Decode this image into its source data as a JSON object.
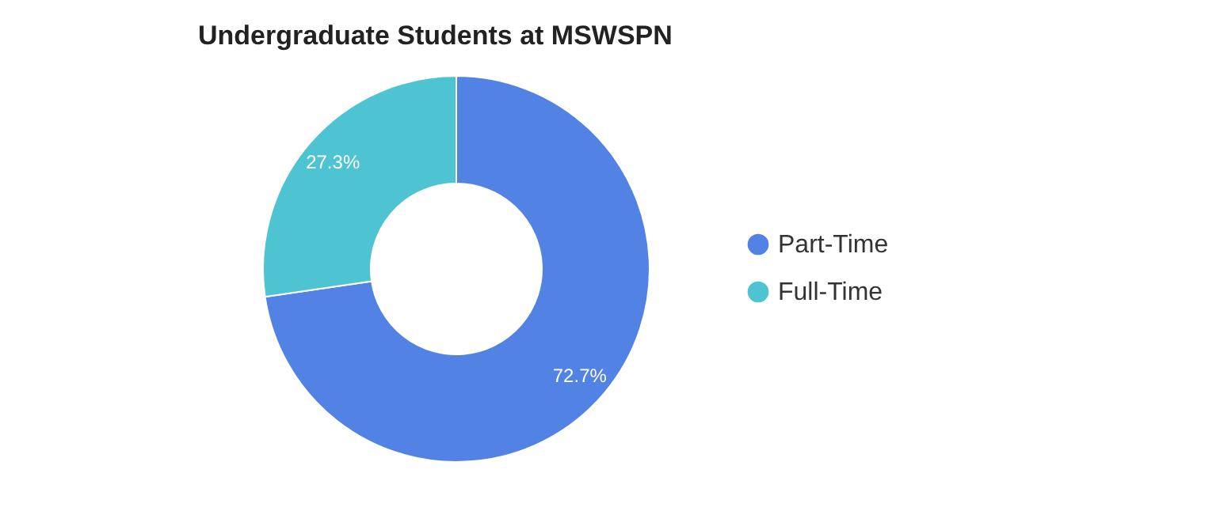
{
  "chart_data": {
    "type": "donut",
    "title": "Undergraduate Students at MSWSPN",
    "categories": [
      "Part-Time",
      "Full-Time"
    ],
    "values": [
      72.7,
      27.3
    ],
    "colors": [
      "#5283e4",
      "#4ec3d1"
    ],
    "value_labels": [
      "72.7%",
      "27.3%"
    ],
    "legend": "right"
  }
}
